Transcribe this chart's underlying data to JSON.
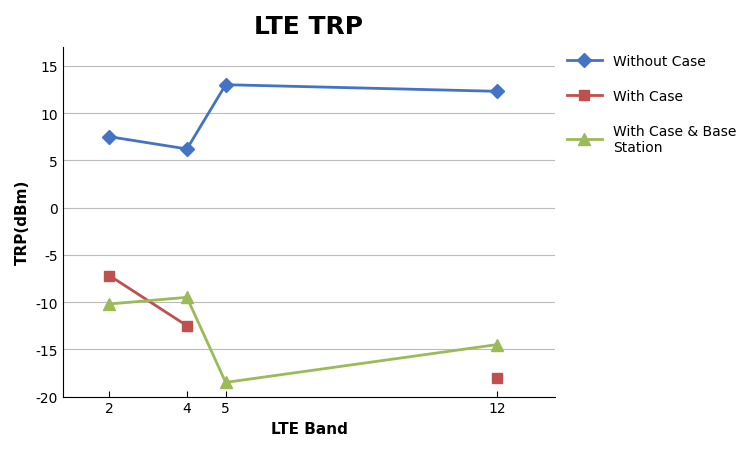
{
  "title": "LTE TRP",
  "xlabel": "LTE Band",
  "ylabel": "TRP(dBm)",
  "x_values": [
    2,
    4,
    5,
    12
  ],
  "series": [
    {
      "name": "Without Case",
      "values": [
        7.5,
        6.2,
        13.0,
        12.3
      ],
      "color": "#4472C4",
      "marker": "D",
      "linewidth": 2,
      "markersize": 7
    },
    {
      "name": "With Case",
      "values": [
        -7.2,
        -12.5,
        null,
        -18.0
      ],
      "color": "#C0504D",
      "marker": "s",
      "linewidth": 2,
      "markersize": 7
    },
    {
      "name": "With Case & Base\nStation",
      "values": [
        -10.2,
        -9.5,
        -18.5,
        -14.5
      ],
      "color": "#9BBB59",
      "marker": "^",
      "linewidth": 2,
      "markersize": 8
    }
  ],
  "ylim": [
    -20,
    17
  ],
  "yticks": [
    -20,
    -15,
    -10,
    -5,
    0,
    5,
    10,
    15
  ],
  "xticks": [
    2,
    4,
    5,
    12
  ],
  "xlim": [
    0.8,
    13.5
  ],
  "background_color": "#FFFFFF",
  "grid_color": "#BBBBBB",
  "title_fontsize": 18,
  "axis_label_fontsize": 11,
  "tick_fontsize": 10,
  "legend_fontsize": 10
}
